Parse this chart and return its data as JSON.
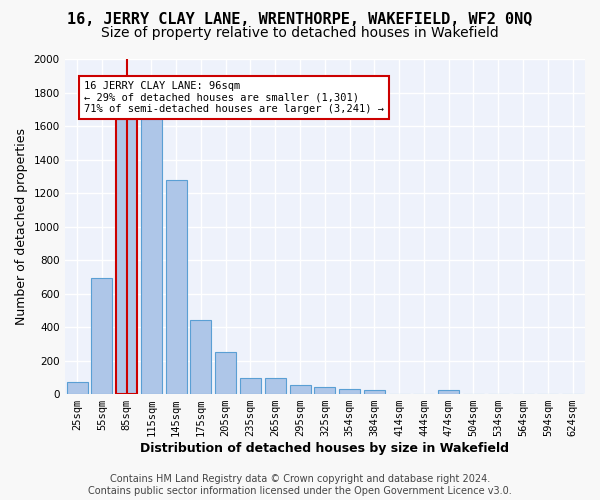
{
  "title1": "16, JERRY CLAY LANE, WRENTHORPE, WAKEFIELD, WF2 0NQ",
  "title2": "Size of property relative to detached houses in Wakefield",
  "xlabel": "Distribution of detached houses by size in Wakefield",
  "ylabel": "Number of detached properties",
  "footer1": "Contains HM Land Registry data © Crown copyright and database right 2024.",
  "footer2": "Contains public sector information licensed under the Open Government Licence v3.0.",
  "annotation_title": "16 JERRY CLAY LANE: 96sqm",
  "annotation_line2": "← 29% of detached houses are smaller (1,301)",
  "annotation_line3": "71% of semi-detached houses are larger (3,241) →",
  "bar_values": [
    70,
    690,
    1640,
    1640,
    1280,
    440,
    250,
    95,
    95,
    55,
    40,
    30,
    25,
    0,
    0,
    25,
    0,
    0,
    0,
    0,
    0
  ],
  "categories": [
    "25sqm",
    "55sqm",
    "85sqm",
    "115sqm",
    "145sqm",
    "175sqm",
    "205sqm",
    "235sqm",
    "265sqm",
    "295sqm",
    "325sqm",
    "354sqm",
    "384sqm",
    "414sqm",
    "444sqm",
    "474sqm",
    "504sqm",
    "534sqm",
    "564sqm",
    "594sqm",
    "624sqm"
  ],
  "bar_color": "#aec6e8",
  "bar_edge_color": "#5a9fd4",
  "highlight_bar_index": 2,
  "highlight_color": "#cc0000",
  "ylim": [
    0,
    2000
  ],
  "yticks": [
    0,
    200,
    400,
    600,
    800,
    1000,
    1200,
    1400,
    1600,
    1800,
    2000
  ],
  "bg_color": "#eef2fb",
  "grid_color": "#ffffff",
  "title1_fontsize": 11,
  "title2_fontsize": 10,
  "axis_label_fontsize": 9,
  "tick_fontsize": 7.5,
  "footer_fontsize": 7
}
